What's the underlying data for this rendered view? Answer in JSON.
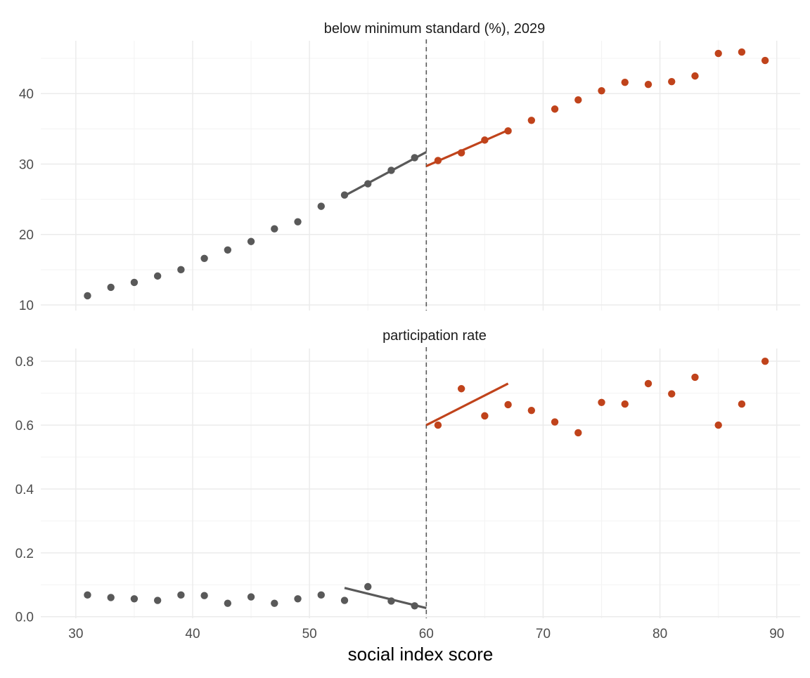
{
  "chart_data": {
    "type": "scatter",
    "xlabel": "social index score",
    "xlim": [
      27,
      92
    ],
    "x_ticks": [
      30,
      40,
      50,
      60,
      70,
      80,
      90
    ],
    "cutoff": 60,
    "grid": true,
    "colors": {
      "left": "#595959",
      "right": "#c0431b"
    },
    "panels": [
      {
        "title": "below minimum standard (%), 2029",
        "ylim": [
          9.2,
          47.5
        ],
        "y_ticks": [
          10,
          20,
          30,
          40
        ],
        "y_tick_labels": [
          "10",
          "20",
          "30",
          "40"
        ],
        "series": [
          {
            "group": "left",
            "x": [
              31,
              33,
              35,
              37,
              39,
              41,
              43,
              45,
              47,
              49,
              51,
              53,
              55,
              57,
              59
            ],
            "y": [
              11.3,
              12.5,
              13.2,
              14.1,
              15.0,
              16.6,
              17.8,
              19.0,
              20.8,
              21.8,
              24.0,
              25.6,
              27.2,
              29.1,
              30.9
            ]
          },
          {
            "group": "right",
            "x": [
              61,
              63,
              65,
              67,
              69,
              71,
              73,
              75,
              77,
              79,
              81,
              83,
              85,
              87,
              89
            ],
            "y": [
              30.5,
              31.6,
              33.4,
              34.7,
              36.2,
              37.8,
              39.1,
              40.4,
              41.6,
              41.3,
              41.7,
              42.5,
              45.7,
              45.9,
              44.7
            ]
          }
        ],
        "fits": [
          {
            "group": "left",
            "x": [
              53,
              60
            ],
            "y": [
              25.5,
              31.7
            ]
          },
          {
            "group": "right",
            "x": [
              60,
              67
            ],
            "y": [
              29.7,
              34.8
            ]
          }
        ]
      },
      {
        "title": "participation rate",
        "ylim": [
          -0.005,
          0.84
        ],
        "y_ticks": [
          0,
          0.2,
          0.4,
          0.6,
          0.8
        ],
        "y_tick_labels": [
          "0.0",
          "0.2",
          "0.4",
          "0.6",
          "0.8"
        ],
        "series": [
          {
            "group": "left",
            "x": [
              31,
              33,
              35,
              37,
              39,
              41,
              43,
              45,
              47,
              49,
              51,
              53,
              55,
              57,
              59
            ],
            "y": [
              0.068,
              0.06,
              0.056,
              0.051,
              0.068,
              0.066,
              0.042,
              0.062,
              0.042,
              0.056,
              0.068,
              0.051,
              0.094,
              0.049,
              0.034
            ]
          },
          {
            "group": "right",
            "x": [
              61,
              63,
              65,
              67,
              69,
              71,
              73,
              75,
              77,
              79,
              81,
              83,
              85,
              87,
              89
            ],
            "y": [
              0.6,
              0.714,
              0.629,
              0.664,
              0.646,
              0.61,
              0.576,
              0.671,
              0.666,
              0.73,
              0.698,
              0.75,
              0.6,
              0.666,
              0.8
            ]
          }
        ],
        "fits": [
          {
            "group": "left",
            "x": [
              53,
              60
            ],
            "y": [
              0.09,
              0.027
            ]
          },
          {
            "group": "right",
            "x": [
              60,
              67
            ],
            "y": [
              0.6,
              0.73
            ]
          }
        ]
      }
    ]
  }
}
